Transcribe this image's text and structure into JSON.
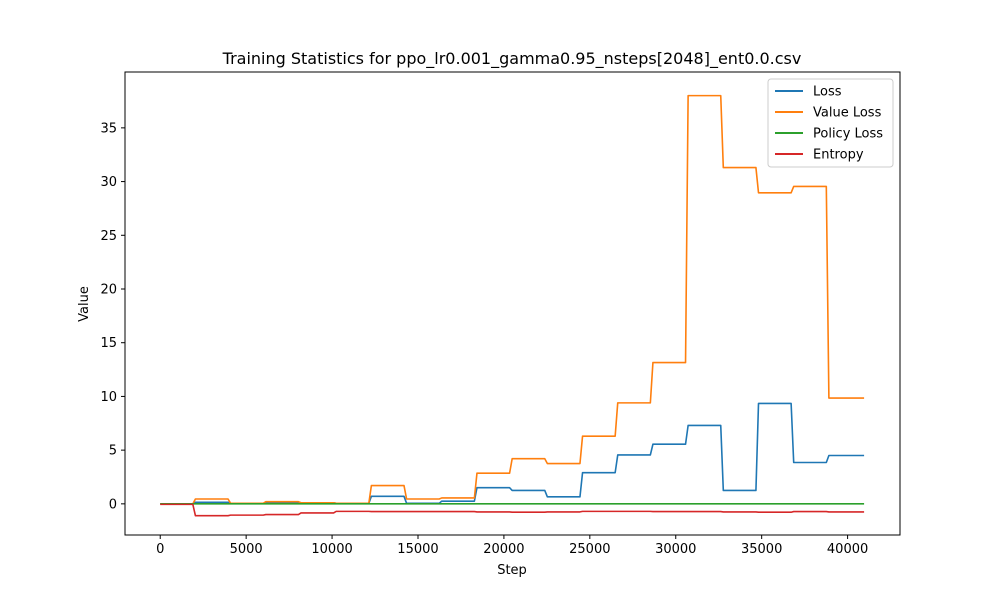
{
  "chart_data": {
    "type": "line",
    "title": "Training Statistics for ppo_lr0.001_gamma0.95_nsteps[2048]_ent0.0.csv",
    "xlabel": "Step",
    "ylabel": "Value",
    "xlim": [
      -2050,
      43050
    ],
    "ylim": [
      -2.9,
      40.2
    ],
    "xticks": [
      0,
      5000,
      10000,
      15000,
      20000,
      25000,
      30000,
      35000,
      40000
    ],
    "yticks": [
      0,
      5,
      10,
      15,
      20,
      25,
      30,
      35
    ],
    "grid": false,
    "legend_position": "top-right",
    "x": [
      0,
      2048,
      4096,
      6144,
      8192,
      10240,
      12288,
      14336,
      16384,
      18432,
      20480,
      22528,
      24576,
      26624,
      28672,
      30720,
      32768,
      34816,
      36864,
      38912,
      40960
    ],
    "series": [
      {
        "name": "Loss",
        "color": "#1f77b4",
        "values": [
          0.0,
          0.15,
          0.05,
          0.05,
          0.1,
          0.05,
          0.7,
          0.05,
          0.25,
          1.5,
          1.25,
          0.65,
          2.9,
          4.55,
          5.55,
          7.3,
          1.25,
          9.35,
          3.85,
          4.5,
          4.5
        ]
      },
      {
        "name": "Value Loss",
        "color": "#ff7f0e",
        "values": [
          0.0,
          0.45,
          0.05,
          0.2,
          0.1,
          0.05,
          1.7,
          0.45,
          0.55,
          2.85,
          4.2,
          3.75,
          6.3,
          9.4,
          13.15,
          38.0,
          31.3,
          28.95,
          29.55,
          9.85,
          9.85
        ]
      },
      {
        "name": "Policy Loss",
        "color": "#2ca02c",
        "values": [
          0.0,
          0.0,
          0.0,
          0.0,
          0.0,
          0.0,
          0.0,
          0.0,
          0.0,
          0.0,
          0.0,
          0.0,
          0.0,
          0.0,
          0.0,
          0.0,
          0.0,
          0.0,
          0.0,
          0.0,
          0.0
        ]
      },
      {
        "name": "Entropy",
        "color": "#d62728",
        "values": [
          -0.05,
          -1.1,
          -1.05,
          -1.0,
          -0.85,
          -0.7,
          -0.72,
          -0.72,
          -0.72,
          -0.75,
          -0.78,
          -0.75,
          -0.7,
          -0.7,
          -0.72,
          -0.72,
          -0.75,
          -0.78,
          -0.72,
          -0.75,
          -0.75
        ]
      }
    ]
  }
}
